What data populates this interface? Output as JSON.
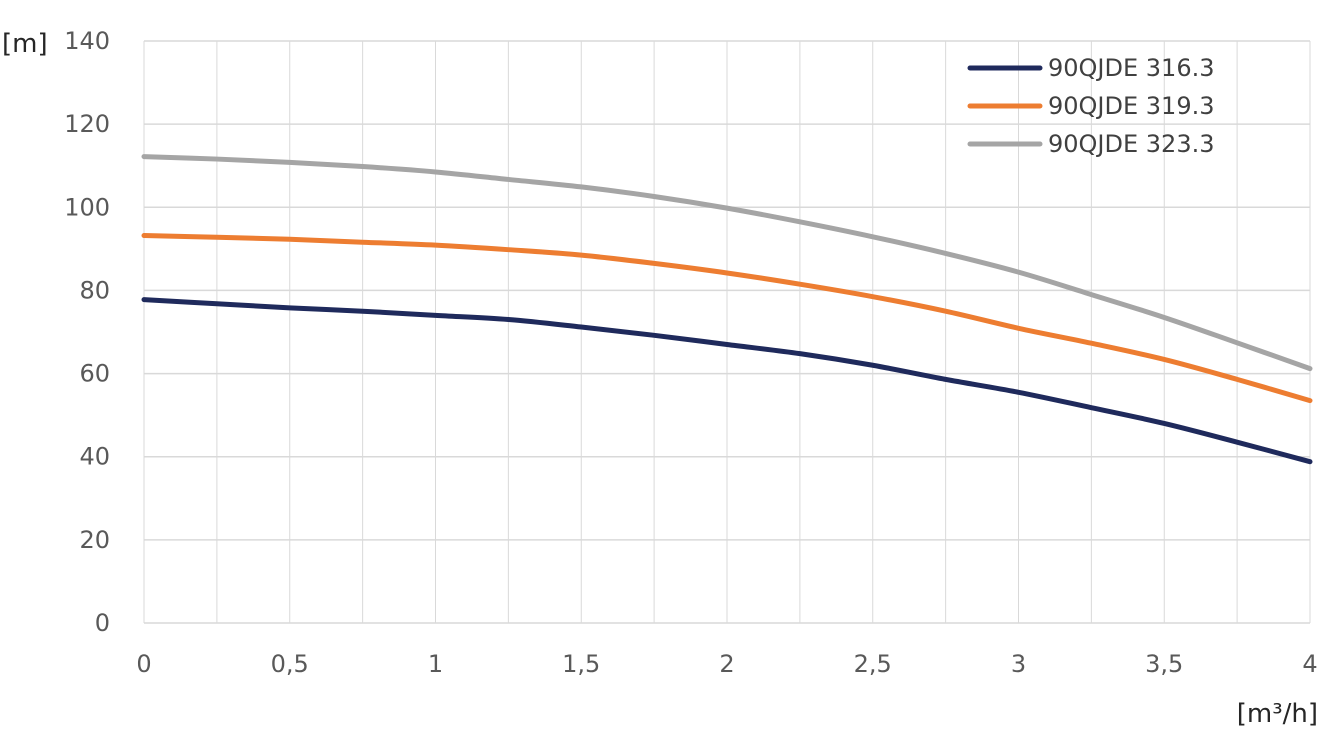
{
  "chart_data": {
    "type": "line",
    "xlabel": "[m³/h]",
    "ylabel": "[m]",
    "xlim": [
      0,
      4
    ],
    "ylim": [
      0,
      140
    ],
    "x_ticks": [
      0,
      0.5,
      1,
      1.5,
      2,
      2.5,
      3,
      3.5,
      4
    ],
    "x_tick_labels": [
      "0",
      "0,5",
      "1",
      "1,5",
      "2",
      "2,5",
      "3",
      "3,5",
      "4"
    ],
    "y_ticks": [
      0,
      20,
      40,
      60,
      80,
      100,
      120,
      140
    ],
    "y_tick_labels": [
      "0",
      "20",
      "40",
      "60",
      "80",
      "100",
      "120",
      "140"
    ],
    "grid": true,
    "legend_position": "top-right",
    "x": [
      0,
      0.25,
      0.5,
      0.75,
      1,
      1.25,
      1.5,
      1.75,
      2,
      2.25,
      2.5,
      2.75,
      3,
      3.25,
      3.5,
      3.75,
      4
    ],
    "series": [
      {
        "name": "90QJDE 316.3",
        "color": "#1f2a5c",
        "values": [
          77.8,
          76.8,
          75.8,
          75.0,
          74.0,
          73.0,
          71.2,
          69.2,
          67.0,
          64.8,
          62.0,
          58.6,
          55.5,
          51.8,
          48.0,
          43.5,
          38.8
        ]
      },
      {
        "name": "90QJDE 319.3",
        "color": "#ed7d31",
        "values": [
          93.2,
          92.8,
          92.3,
          91.6,
          90.9,
          89.8,
          88.5,
          86.5,
          84.2,
          81.5,
          78.5,
          75.0,
          70.9,
          67.3,
          63.4,
          58.6,
          53.5
        ]
      },
      {
        "name": "90QJDE 323.3",
        "color": "#a5a5a5",
        "values": [
          112.2,
          111.6,
          110.8,
          109.8,
          108.5,
          106.7,
          104.9,
          102.6,
          99.8,
          96.5,
          92.9,
          88.9,
          84.4,
          79.0,
          73.5,
          67.4,
          61.2
        ]
      }
    ]
  }
}
